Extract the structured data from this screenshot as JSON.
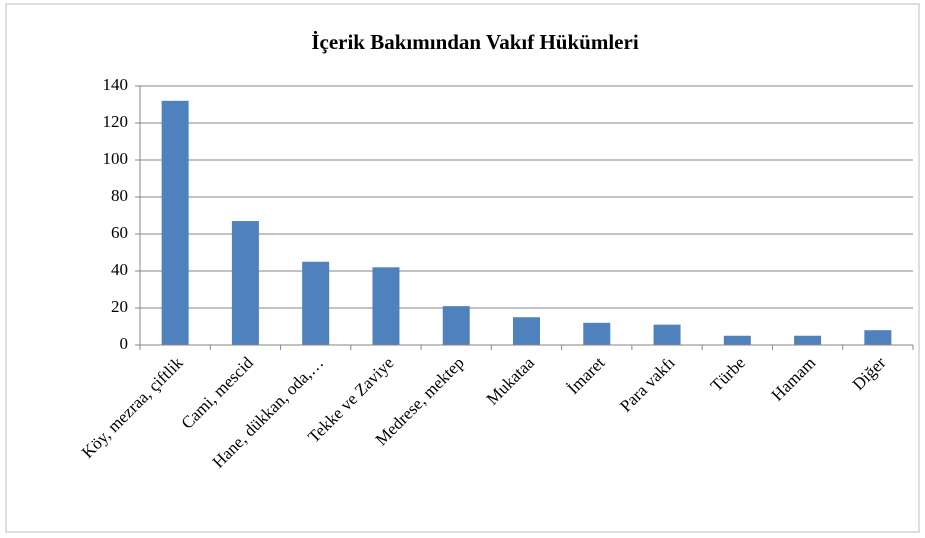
{
  "chart_data": {
    "type": "bar",
    "title": "İçerik Bakımından Vakıf Hükümleri",
    "categories": [
      "Köy, mezraa, çiftlik",
      "Cami, mescid",
      "Hane, dükkan, oda,…",
      "Tekke ve Zaviye",
      "Medrese, mektep",
      "Mukataa",
      "İmaret",
      "Para vakfı",
      "Türbe",
      "Hamam",
      "Diğer"
    ],
    "values": [
      132,
      67,
      45,
      42,
      21,
      15,
      12,
      11,
      5,
      5,
      8
    ],
    "color": "#4f81bd",
    "ylim": [
      0,
      140
    ],
    "yticks": [
      0,
      20,
      40,
      60,
      80,
      100,
      120,
      140
    ],
    "grid": true
  }
}
